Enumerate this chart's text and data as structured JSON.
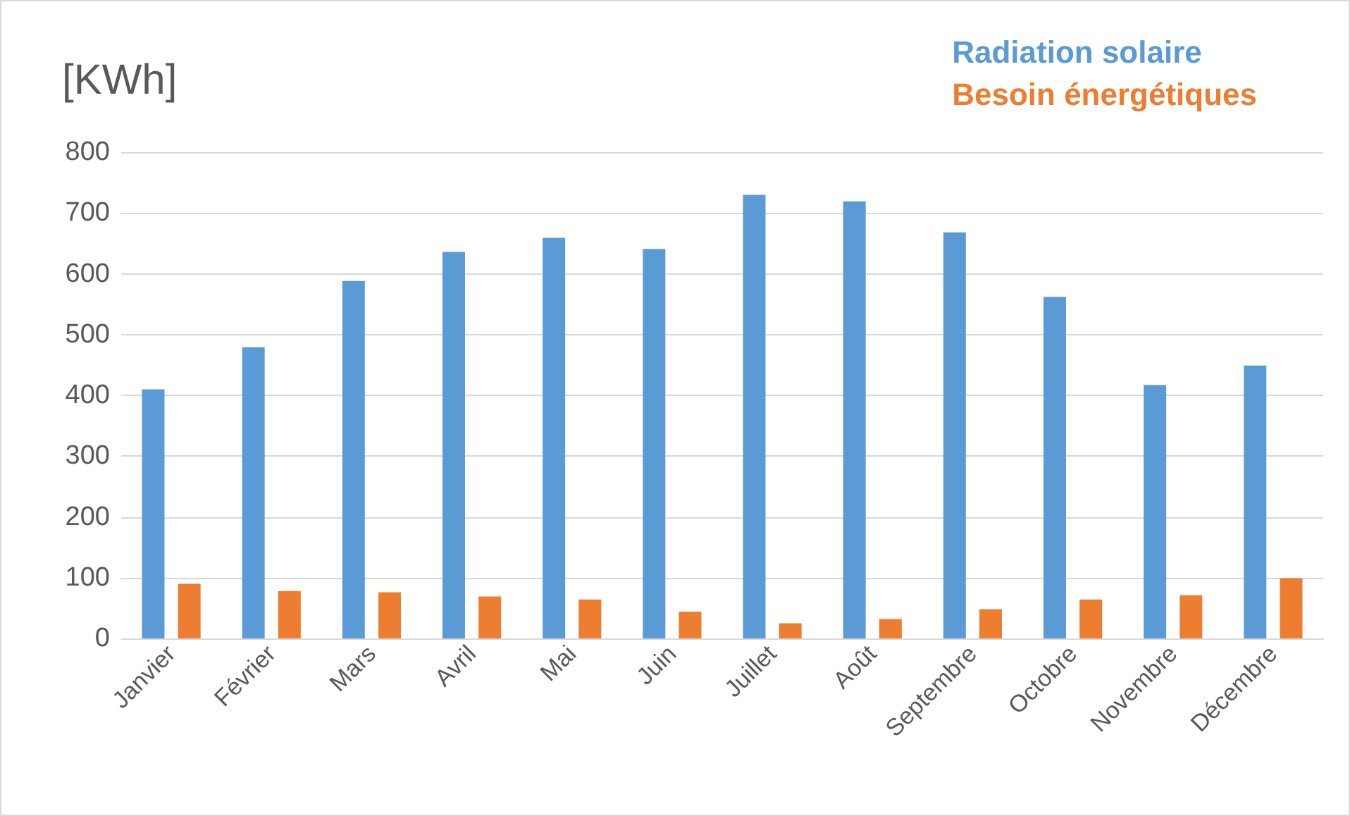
{
  "chart_data": {
    "type": "bar",
    "ylabel": "[KWh]",
    "categories": [
      "Janvier",
      "Février",
      "Mars",
      "Avril",
      "Mai",
      "Juin",
      "Juillet",
      "Août",
      "Septembre",
      "Octobre",
      "Novembre",
      "Décembre"
    ],
    "series": [
      {
        "name": "Radiation solaire",
        "color": "#5b9bd5",
        "values": [
          410,
          479,
          588,
          636,
          659,
          641,
          730,
          719,
          668,
          562,
          417,
          449
        ]
      },
      {
        "name": "Besoin énergétiques",
        "color": "#ed7d31",
        "values": [
          90,
          78,
          76,
          69,
          64,
          44,
          25,
          32,
          48,
          64,
          71,
          99
        ]
      }
    ],
    "ylim": [
      0,
      800
    ],
    "yticks": [
      0,
      100,
      200,
      300,
      400,
      500,
      600,
      700,
      800
    ],
    "grid": "y",
    "legend": "top right"
  }
}
